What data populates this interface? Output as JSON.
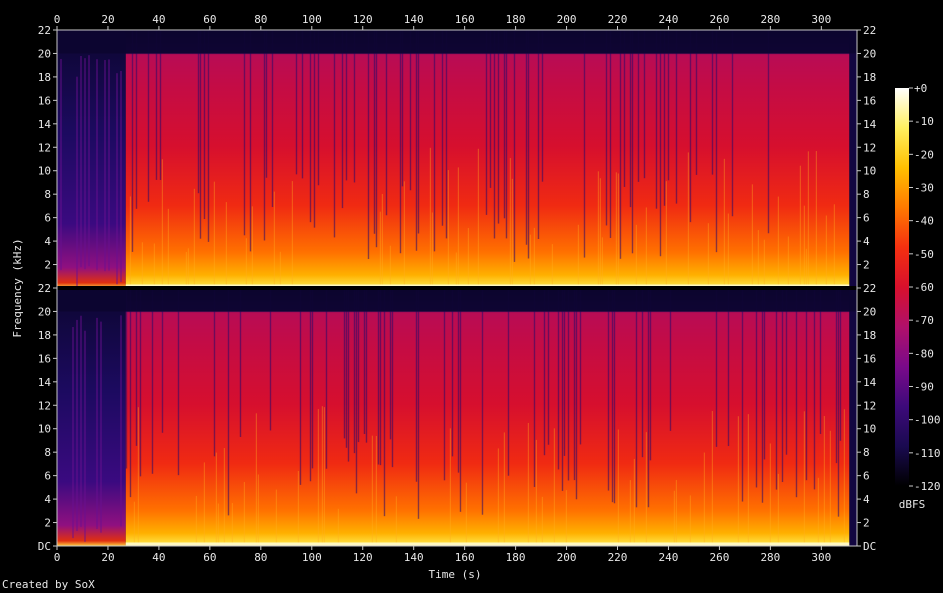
{
  "chart_data": {
    "type": "heatmap",
    "subtype": "spectrogram",
    "title": "",
    "xlabel": "Time (s)",
    "ylabel": "Frequency (kHz)",
    "xlim": [
      0,
      314
    ],
    "ylim": [
      0,
      22
    ],
    "x_ticks": [
      0,
      20,
      40,
      60,
      80,
      100,
      120,
      140,
      160,
      180,
      200,
      220,
      240,
      260,
      280,
      300
    ],
    "y_ticks": [
      "DC",
      "2",
      "4",
      "6",
      "8",
      "10",
      "12",
      "14",
      "16",
      "18",
      "20",
      "22"
    ],
    "y_tick_values": [
      0,
      2,
      4,
      6,
      8,
      10,
      12,
      14,
      16,
      18,
      20,
      22
    ],
    "channels": 2,
    "colorbar": {
      "label": "dBFS",
      "ticks": [
        "+0",
        "-10",
        "-20",
        "-30",
        "-40",
        "-50",
        "-60",
        "-70",
        "-80",
        "-90",
        "-100",
        "-110",
        "-120"
      ],
      "tick_values": [
        0,
        -10,
        -20,
        -30,
        -40,
        -50,
        -60,
        -70,
        -80,
        -90,
        -100,
        -110,
        -120
      ],
      "range": [
        -120,
        0
      ],
      "colors": [
        "#000000",
        "#1a0a50",
        "#3d0a7a",
        "#7a0a8a",
        "#b0106a",
        "#d8102c",
        "#f53010",
        "#ff7a00",
        "#ffc000",
        "#fff060",
        "#ffffff"
      ]
    },
    "credit": "Created by SoX"
  }
}
